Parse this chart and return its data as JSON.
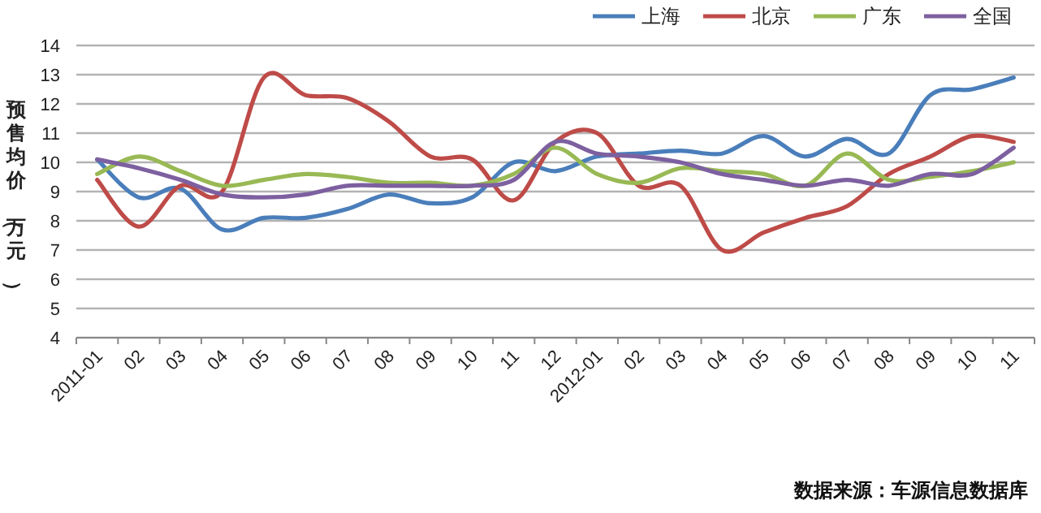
{
  "chart_data": {
    "type": "line",
    "categories": [
      "2011-01",
      "02",
      "03",
      "04",
      "05",
      "06",
      "07",
      "08",
      "09",
      "10",
      "11",
      "12",
      "2012-01",
      "02",
      "03",
      "04",
      "05",
      "06",
      "07",
      "08",
      "09",
      "10",
      "11"
    ],
    "series": [
      {
        "name": "上海",
        "color": "#4a7ebb",
        "values": [
          10.1,
          8.8,
          9.1,
          7.7,
          8.1,
          8.1,
          8.4,
          8.9,
          8.6,
          8.8,
          10.0,
          9.7,
          10.2,
          10.3,
          10.4,
          10.3,
          10.9,
          10.2,
          10.8,
          10.3,
          12.3,
          12.5,
          12.9
        ]
      },
      {
        "name": "北京",
        "color": "#be4b48",
        "values": [
          9.4,
          7.8,
          9.2,
          9.0,
          12.9,
          12.3,
          12.2,
          11.4,
          10.2,
          10.1,
          8.7,
          10.7,
          11.0,
          9.2,
          9.2,
          7.0,
          7.6,
          8.1,
          8.5,
          9.6,
          10.2,
          10.9,
          10.7
        ]
      },
      {
        "name": "广东",
        "color": "#98b954",
        "values": [
          9.6,
          10.2,
          9.7,
          9.2,
          9.4,
          9.6,
          9.5,
          9.3,
          9.3,
          9.2,
          9.6,
          10.5,
          9.6,
          9.3,
          9.8,
          9.7,
          9.6,
          9.2,
          10.3,
          9.4,
          9.5,
          9.7,
          10.0
        ]
      },
      {
        "name": "全国",
        "color": "#7d60a0",
        "values": [
          10.1,
          9.8,
          9.4,
          8.9,
          8.8,
          8.9,
          9.2,
          9.2,
          9.2,
          9.2,
          9.4,
          10.7,
          10.3,
          10.2,
          10.0,
          9.6,
          9.4,
          9.2,
          9.4,
          9.2,
          9.6,
          9.6,
          10.5
        ]
      }
    ],
    "ylabel": "预售均价（万元）",
    "ylim": [
      4,
      14
    ],
    "yticks": [
      4,
      5,
      6,
      7,
      8,
      9,
      10,
      11,
      12,
      13,
      14
    ],
    "grid": "y",
    "legend": "top right",
    "marker": "none",
    "line_style": "solid",
    "annotations": [
      "数据来源：车源信息数据库"
    ]
  }
}
